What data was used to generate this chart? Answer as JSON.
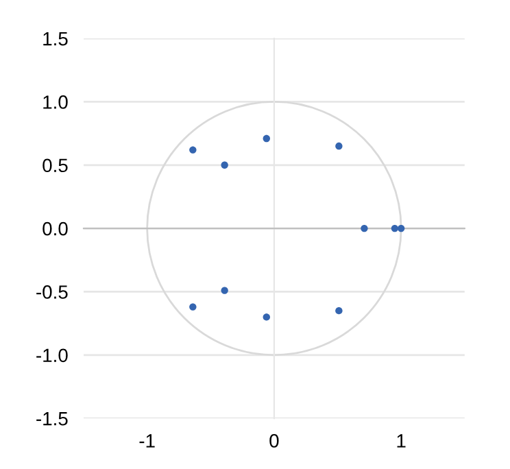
{
  "chart_data": {
    "type": "scatter",
    "series": [
      {
        "color": "#3465b0",
        "x": [
          -0.64,
          -0.39,
          -0.06,
          0.51,
          0.71,
          0.95,
          1.0,
          -0.64,
          -0.39,
          -0.06,
          0.51
        ],
        "values": [
          0.62,
          0.5,
          0.71,
          0.65,
          0,
          0,
          0,
          -0.62,
          -0.49,
          -0.7,
          -0.65
        ]
      }
    ],
    "marker": "circle",
    "xlim": [
      -1.5,
      1.5
    ],
    "xticks": [
      -1,
      0,
      1
    ],
    "ylim": [
      -1.5,
      1.5
    ],
    "yticks": [
      {
        "value": -1.5,
        "label": "-1.5"
      },
      {
        "value": -1.0,
        "label": "-1.0"
      },
      {
        "value": -0.5,
        "label": "-0.5"
      },
      {
        "value": 0,
        "label": "0.0"
      },
      {
        "value": 0.5,
        "label": "0.5"
      },
      {
        "value": 1.0,
        "label": "1.0"
      },
      {
        "value": 1.5,
        "label": "1.5"
      }
    ],
    "grid": "y",
    "legend": false
  }
}
